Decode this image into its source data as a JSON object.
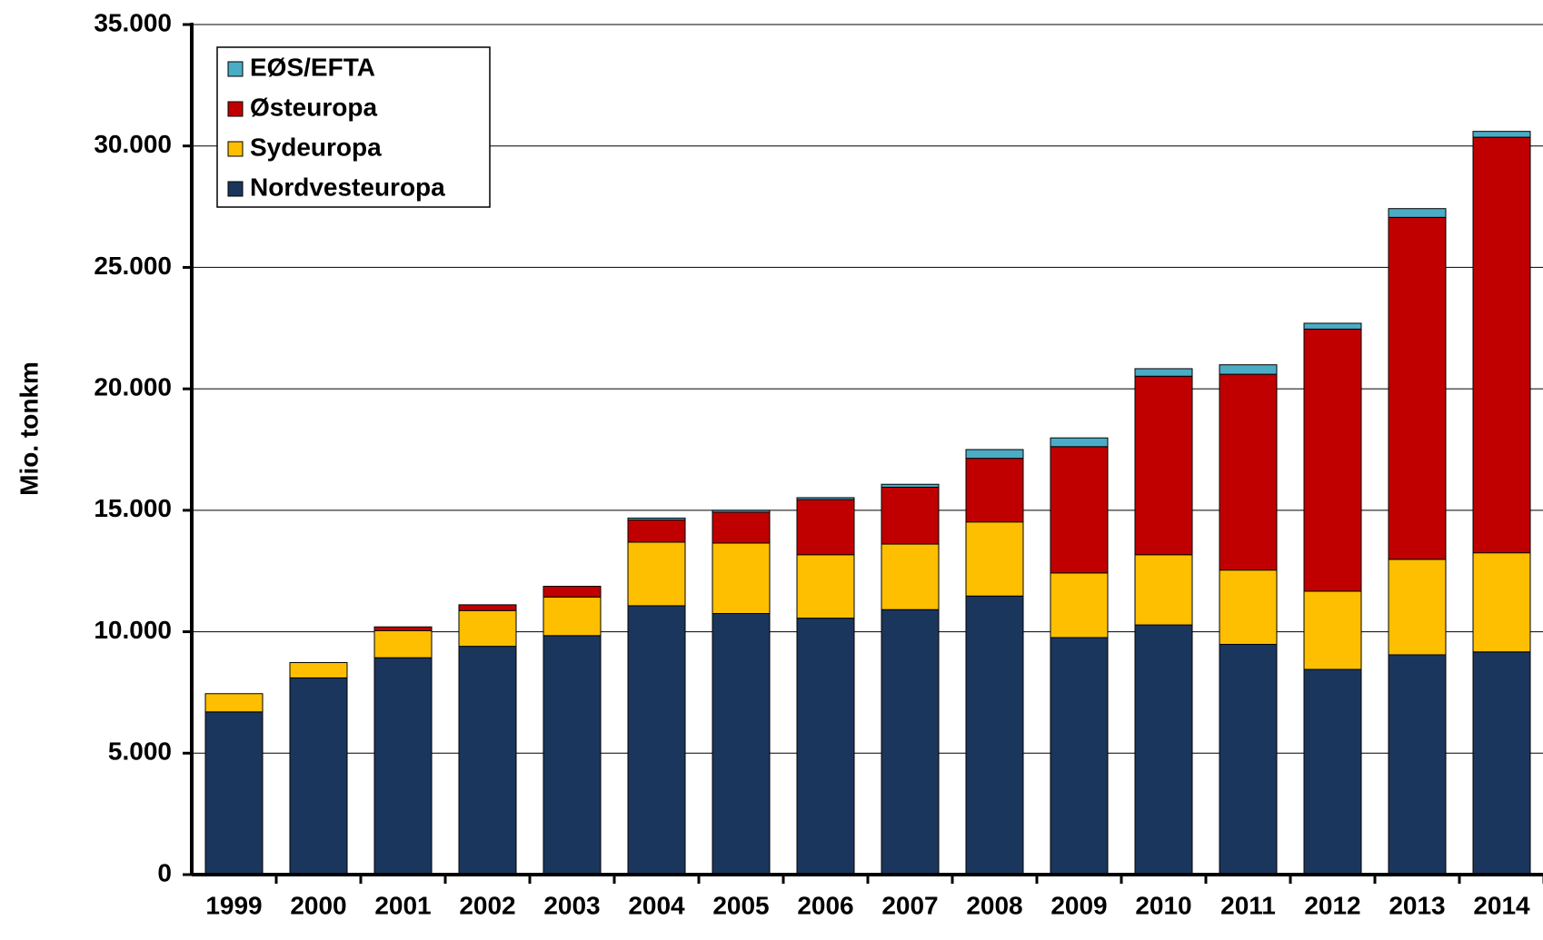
{
  "chart_data": {
    "type": "bar",
    "stacked": true,
    "y_label": "Mio. tonkm",
    "categories": [
      "1999",
      "2000",
      "2001",
      "2002",
      "2003",
      "2004",
      "2005",
      "2006",
      "2007",
      "2008",
      "2009",
      "2010",
      "2011",
      "2012",
      "2013",
      "2014"
    ],
    "series": [
      {
        "name": "Nordvesteuropa",
        "color": "#1b365d",
        "values": [
          6700,
          8100,
          8930,
          9400,
          9840,
          11070,
          10750,
          10560,
          10910,
          11470,
          9760,
          10280,
          9480,
          8450,
          9050,
          9170
        ]
      },
      {
        "name": "Sydeuropa",
        "color": "#fdbf00",
        "values": [
          750,
          630,
          1110,
          1470,
          1590,
          2620,
          2900,
          2610,
          2700,
          3050,
          2660,
          2890,
          3060,
          3220,
          3930,
          4080
        ]
      },
      {
        "name": "Østeuropa",
        "color": "#c00000",
        "values": [
          0,
          0,
          160,
          240,
          440,
          910,
          1270,
          2270,
          2340,
          2620,
          5200,
          7350,
          8060,
          10790,
          14080,
          17110
        ]
      },
      {
        "name": "EØS/EFTA",
        "color": "#4bacc6",
        "values": [
          0,
          0,
          0,
          0,
          0,
          80,
          80,
          80,
          120,
          360,
          360,
          310,
          390,
          240,
          360,
          240
        ]
      }
    ],
    "ylim": [
      0,
      35000
    ],
    "yticks": [
      0,
      {
        "value": 5000,
        "label": "5.000"
      },
      {
        "value": 10000,
        "label": "10.000"
      },
      {
        "value": 15000,
        "label": "15.000"
      },
      {
        "value": 20000,
        "label": "20.000"
      },
      {
        "value": 25000,
        "label": "25.000"
      },
      {
        "value": 30000,
        "label": "30.000"
      },
      {
        "value": 35000,
        "label": "35.000"
      }
    ],
    "grid": true,
    "legend": "upper left"
  }
}
